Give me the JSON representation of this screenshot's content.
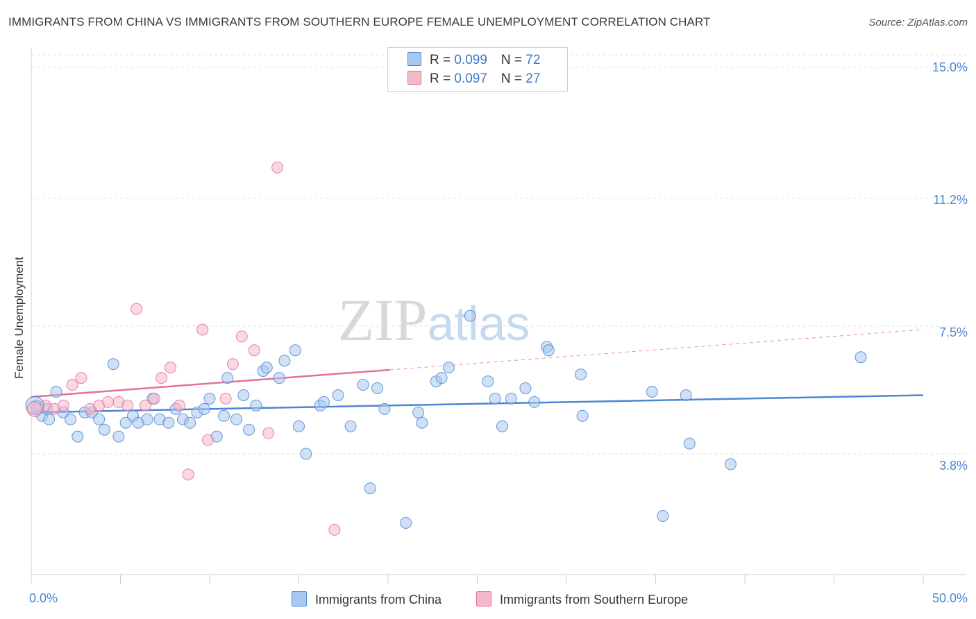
{
  "title": "IMMIGRANTS FROM CHINA VS IMMIGRANTS FROM SOUTHERN EUROPE FEMALE UNEMPLOYMENT CORRELATION CHART",
  "source": "Source: ZipAtlas.com",
  "watermark": "ZIPatlas",
  "colors": {
    "blue": "#4a86d4",
    "blue_fill": "#a9c8ef",
    "pink": "#e3709a",
    "pink_fill": "#f4b8cb"
  },
  "legend": {
    "r_label": "R = ",
    "n_label": "N = ",
    "series": [
      {
        "r": "0.099",
        "n": "72"
      },
      {
        "r": "0.097",
        "n": "27"
      }
    ]
  },
  "chart_data": {
    "type": "scatter",
    "title": "IMMIGRANTS FROM CHINA VS IMMIGRANTS FROM SOUTHERN EUROPE FEMALE UNEMPLOYMENT CORRELATION CHART",
    "xlabel": "",
    "ylabel": "Female Unemployment",
    "xlim": [
      0,
      50
    ],
    "ylim": [
      0.5,
      15.5
    ],
    "x_tick_labels": [
      "0.0%",
      "50.0%"
    ],
    "y_ticks": [
      3.8,
      7.5,
      11.2,
      15.0
    ],
    "y_tick_labels": [
      "3.8%",
      "7.5%",
      "11.2%",
      "15.0%"
    ],
    "grid": true,
    "legend_position": "top-center",
    "series": [
      {
        "name": "Immigrants from China",
        "color": "#4a86d4",
        "trend": {
          "x": [
            0,
            50
          ],
          "y": [
            5.0,
            5.5
          ]
        },
        "points": [
          [
            0.3,
            5.2
          ],
          [
            0.6,
            4.9
          ],
          [
            1.0,
            4.8
          ],
          [
            1.4,
            5.6
          ],
          [
            1.8,
            5.0
          ],
          [
            2.2,
            4.8
          ],
          [
            2.6,
            4.3
          ],
          [
            3.0,
            5.0
          ],
          [
            3.4,
            5.0
          ],
          [
            3.8,
            4.8
          ],
          [
            4.1,
            4.5
          ],
          [
            4.6,
            6.4
          ],
          [
            4.9,
            4.3
          ],
          [
            5.3,
            4.7
          ],
          [
            5.7,
            4.9
          ],
          [
            6.0,
            4.7
          ],
          [
            6.5,
            4.8
          ],
          [
            6.8,
            5.4
          ],
          [
            7.2,
            4.8
          ],
          [
            7.7,
            4.7
          ],
          [
            8.1,
            5.1
          ],
          [
            8.5,
            4.8
          ],
          [
            8.9,
            4.7
          ],
          [
            9.3,
            5.0
          ],
          [
            9.7,
            5.1
          ],
          [
            10.0,
            5.4
          ],
          [
            10.4,
            4.3
          ],
          [
            10.8,
            4.9
          ],
          [
            11.0,
            6.0
          ],
          [
            11.5,
            4.8
          ],
          [
            11.9,
            5.5
          ],
          [
            12.2,
            4.5
          ],
          [
            12.6,
            5.2
          ],
          [
            13.0,
            6.2
          ],
          [
            13.2,
            6.3
          ],
          [
            13.9,
            6.0
          ],
          [
            14.2,
            6.5
          ],
          [
            14.8,
            6.8
          ],
          [
            15.0,
            4.6
          ],
          [
            15.4,
            3.8
          ],
          [
            16.2,
            5.2
          ],
          [
            16.4,
            5.3
          ],
          [
            17.2,
            5.5
          ],
          [
            17.9,
            4.6
          ],
          [
            18.6,
            5.8
          ],
          [
            19.0,
            2.8
          ],
          [
            19.4,
            5.7
          ],
          [
            19.8,
            5.1
          ],
          [
            21.0,
            1.8
          ],
          [
            21.7,
            5.0
          ],
          [
            21.9,
            4.7
          ],
          [
            22.7,
            5.9
          ],
          [
            23.0,
            6.0
          ],
          [
            23.4,
            6.3
          ],
          [
            24.6,
            7.8
          ],
          [
            25.6,
            5.9
          ],
          [
            26.0,
            5.4
          ],
          [
            26.4,
            4.6
          ],
          [
            26.9,
            5.4
          ],
          [
            27.7,
            5.7
          ],
          [
            28.2,
            5.3
          ],
          [
            28.9,
            6.9
          ],
          [
            29.0,
            6.8
          ],
          [
            30.8,
            6.1
          ],
          [
            30.9,
            4.9
          ],
          [
            34.8,
            5.6
          ],
          [
            35.4,
            2.0
          ],
          [
            36.7,
            5.5
          ],
          [
            36.9,
            4.1
          ],
          [
            39.2,
            3.5
          ],
          [
            46.5,
            6.6
          ],
          [
            0.9,
            5.1
          ]
        ]
      },
      {
        "name": "Immigrants from Southern Europe",
        "color": "#e3709a",
        "trend": {
          "x": [
            0,
            50
          ],
          "y": [
            5.45,
            7.4
          ]
        },
        "points": [
          [
            0.3,
            5.1
          ],
          [
            0.8,
            5.2
          ],
          [
            1.3,
            5.1
          ],
          [
            1.8,
            5.2
          ],
          [
            2.3,
            5.8
          ],
          [
            2.8,
            6.0
          ],
          [
            3.3,
            5.1
          ],
          [
            3.8,
            5.2
          ],
          [
            4.3,
            5.3
          ],
          [
            4.9,
            5.3
          ],
          [
            5.4,
            5.2
          ],
          [
            5.9,
            8.0
          ],
          [
            6.4,
            5.2
          ],
          [
            6.9,
            5.4
          ],
          [
            7.3,
            6.0
          ],
          [
            7.8,
            6.3
          ],
          [
            8.3,
            5.2
          ],
          [
            8.8,
            3.2
          ],
          [
            9.6,
            7.4
          ],
          [
            9.9,
            4.2
          ],
          [
            10.9,
            5.4
          ],
          [
            11.3,
            6.4
          ],
          [
            11.8,
            7.2
          ],
          [
            12.5,
            6.8
          ],
          [
            13.3,
            4.4
          ],
          [
            13.8,
            12.1
          ],
          [
            17.0,
            1.6
          ]
        ]
      }
    ]
  },
  "bottom_legend": [
    "Immigrants from China",
    "Immigrants from Southern Europe"
  ]
}
